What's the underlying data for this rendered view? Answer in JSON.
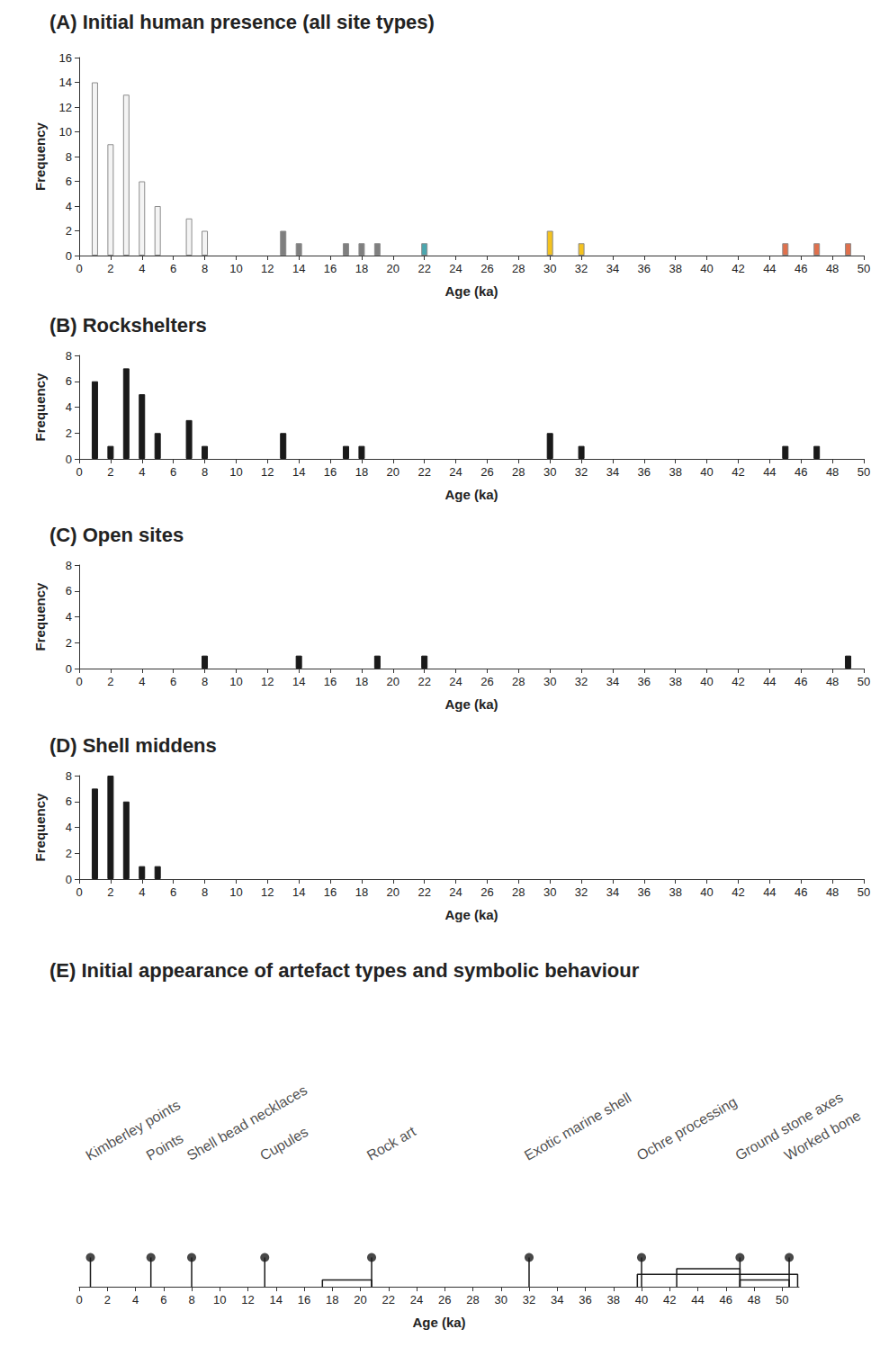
{
  "chart_data": [
    {
      "type": "bar",
      "title": "(A) Initial human presence (all site types)",
      "x": [
        1,
        2,
        3,
        4,
        5,
        7,
        8,
        13,
        14,
        17,
        18,
        19,
        22,
        30,
        32,
        45,
        47,
        49
      ],
      "values": [
        14,
        9,
        13,
        6,
        4,
        3,
        2,
        2,
        1,
        1,
        1,
        1,
        1,
        2,
        1,
        1,
        1,
        1
      ],
      "colors": [
        "#f4f4f4",
        "#f4f4f4",
        "#f4f4f4",
        "#f4f4f4",
        "#f4f4f4",
        "#f4f4f4",
        "#f4f4f4",
        "#7f7f7f",
        "#7f7f7f",
        "#7f7f7f",
        "#7f7f7f",
        "#7f7f7f",
        "#4aa6ae",
        "#f4c21f",
        "#f4c21f",
        "#e0704c",
        "#e0704c",
        "#e0704c"
      ],
      "x_label": "Age (ka)",
      "y_label": "Frequency",
      "xlim": [
        0,
        50
      ],
      "xticks": [
        0,
        2,
        4,
        6,
        8,
        10,
        12,
        14,
        16,
        18,
        20,
        22,
        24,
        26,
        28,
        30,
        32,
        34,
        36,
        38,
        40,
        42,
        44,
        46,
        48,
        50
      ],
      "ylim": [
        0,
        16
      ],
      "yticks": [
        0,
        2,
        4,
        6,
        8,
        10,
        12,
        14,
        16
      ]
    },
    {
      "type": "bar",
      "title": "(B) Rockshelters",
      "x": [
        1,
        2,
        3,
        4,
        5,
        7,
        8,
        13,
        17,
        18,
        30,
        32,
        45,
        47
      ],
      "values": [
        6,
        1,
        7,
        5,
        2,
        3,
        1,
        2,
        1,
        1,
        2,
        1,
        1,
        1
      ],
      "color": "#1a1a1a",
      "x_label": "Age (ka)",
      "y_label": "Frequency",
      "xlim": [
        0,
        50
      ],
      "xticks": [
        0,
        2,
        4,
        6,
        8,
        10,
        12,
        14,
        16,
        18,
        20,
        22,
        24,
        26,
        28,
        30,
        32,
        34,
        36,
        38,
        40,
        42,
        44,
        46,
        48,
        50
      ],
      "ylim": [
        0,
        8
      ],
      "yticks": [
        0,
        2,
        4,
        6,
        8
      ]
    },
    {
      "type": "bar",
      "title": "(C) Open sites",
      "x": [
        8,
        14,
        19,
        22,
        49
      ],
      "values": [
        1,
        1,
        1,
        1,
        1
      ],
      "color": "#1a1a1a",
      "x_label": "Age (ka)",
      "y_label": "Frequency",
      "xlim": [
        0,
        50
      ],
      "xticks": [
        0,
        2,
        4,
        6,
        8,
        10,
        12,
        14,
        16,
        18,
        20,
        22,
        24,
        26,
        28,
        30,
        32,
        34,
        36,
        38,
        40,
        42,
        44,
        46,
        48,
        50
      ],
      "ylim": [
        0,
        8
      ],
      "yticks": [
        0,
        2,
        4,
        6,
        8
      ]
    },
    {
      "type": "bar",
      "title": "(D) Shell middens",
      "x": [
        1,
        2,
        3,
        4,
        5
      ],
      "values": [
        7,
        8,
        6,
        1,
        1
      ],
      "color": "#1a1a1a",
      "x_label": "Age (ka)",
      "y_label": "Frequency",
      "xlim": [
        0,
        50
      ],
      "xticks": [
        0,
        2,
        4,
        6,
        8,
        10,
        12,
        14,
        16,
        18,
        20,
        22,
        24,
        26,
        28,
        30,
        32,
        34,
        36,
        38,
        40,
        42,
        44,
        46,
        48,
        50
      ],
      "ylim": [
        0,
        8
      ],
      "yticks": [
        0,
        2,
        4,
        6,
        8
      ]
    },
    {
      "type": "timeline",
      "title": "(E) Initial appearance of artefact types and symbolic behaviour",
      "events": [
        {
          "label": "Kimberley points",
          "age": 0.8
        },
        {
          "label": "Points",
          "age": 5.1
        },
        {
          "label": "Shell bead necklaces",
          "age": 8
        },
        {
          "label": "Cupules",
          "age": 13.2
        },
        {
          "label": "Rock art",
          "age": 20.8,
          "range": [
            17.3,
            20.8
          ]
        },
        {
          "label": "Exotic marine shell",
          "age": 32
        },
        {
          "label": "Ochre processing",
          "age": 40,
          "range": [
            39.7,
            51.1
          ]
        },
        {
          "label": "Ground stone axes",
          "age": 47,
          "range": [
            42.5,
            47
          ]
        },
        {
          "label": "Worked bone",
          "age": 50.5,
          "range": [
            47,
            50.5
          ]
        }
      ],
      "color": "#1a1a1a",
      "x_label": "Age (ka)",
      "xlim": [
        0,
        51.2
      ],
      "xticks": [
        0,
        2,
        4,
        6,
        8,
        10,
        12,
        14,
        16,
        18,
        20,
        22,
        24,
        26,
        28,
        30,
        32,
        34,
        36,
        38,
        40,
        42,
        44,
        46,
        48,
        50
      ]
    }
  ]
}
